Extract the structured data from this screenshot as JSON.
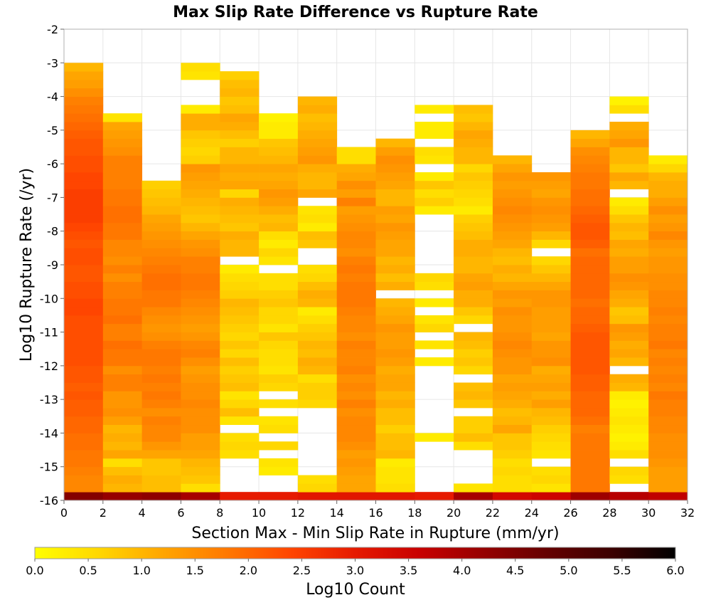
{
  "chart_data": {
    "type": "heatmap",
    "title": "Max Slip Rate Difference vs Rupture Rate",
    "xlabel": "Section Max - Min Slip Rate in Rupture (mm/yr)",
    "ylabel": "Log10 Rupture Rate (/yr)",
    "xlim": [
      0,
      32
    ],
    "ylim": [
      -16,
      -2
    ],
    "x_ticks": [
      0,
      2,
      4,
      6,
      8,
      10,
      12,
      14,
      16,
      18,
      20,
      22,
      24,
      26,
      28,
      30,
      32
    ],
    "y_ticks": [
      -2,
      -3,
      -4,
      -5,
      -6,
      -7,
      -8,
      -9,
      -10,
      -11,
      -12,
      -13,
      -14,
      -15,
      -16
    ],
    "x_bin_width": 2,
    "y_bin_height": 0.25,
    "y_first_bin_center": -15.875,
    "grid": true,
    "colorbar": {
      "label": "Log10 Count",
      "range": [
        0.0,
        6.0
      ],
      "ticks": [
        "0.0",
        "0.5",
        "1.0",
        "1.5",
        "2.0",
        "2.5",
        "3.0",
        "3.5",
        "4.0",
        "4.5",
        "5.0",
        "5.5",
        "6.0"
      ],
      "colors": [
        "#ffff00",
        "#ffd700",
        "#ffa500",
        "#ff7800",
        "#ff4500",
        "#e61a00",
        "#c80000",
        "#960000",
        "#640000",
        "#3c0000",
        "#000000"
      ]
    },
    "columns": [
      {
        "x_center": 1,
        "values": [
          4.4,
          1.6,
          1.6,
          1.7,
          1.8,
          1.8,
          1.9,
          1.9,
          2.0,
          2.0,
          2.1,
          2.1,
          2.2,
          2.1,
          2.2,
          2.2,
          2.3,
          2.3,
          2.3,
          2.3,
          2.3,
          2.3,
          2.4,
          2.4,
          2.3,
          2.3,
          2.2,
          2.2,
          2.3,
          2.3,
          2.2,
          2.3,
          2.4,
          2.5,
          2.5,
          2.5,
          2.5,
          2.4,
          2.4,
          2.3,
          2.3,
          2.2,
          2.2,
          2.1,
          2.0,
          1.9,
          1.8,
          1.7,
          1.5,
          1.3,
          1.2,
          1.0
        ]
      },
      {
        "x_center": 3,
        "values": [
          4.2,
          1.0,
          1.1,
          0.9,
          0.5,
          1.2,
          1.0,
          1.1,
          1.0,
          1.3,
          1.5,
          1.4,
          1.4,
          1.7,
          1.7,
          1.5,
          1.8,
          1.8,
          1.9,
          1.7,
          1.7,
          1.9,
          1.8,
          1.8,
          1.7,
          1.7,
          1.5,
          1.7,
          1.5,
          1.6,
          1.6,
          1.8,
          1.8,
          1.9,
          1.9,
          1.8,
          1.8,
          1.7,
          1.7,
          1.7,
          1.7,
          1.5,
          1.4,
          1.3,
          1.2,
          0.4
        ]
      },
      {
        "x_center": 5,
        "values": [
          4.3,
          0.9,
          0.9,
          0.8,
          0.8,
          1.2,
          1.4,
          1.6,
          1.6,
          1.7,
          1.5,
          1.7,
          1.8,
          1.7,
          1.8,
          1.7,
          1.8,
          1.8,
          1.7,
          1.5,
          1.4,
          1.5,
          1.6,
          1.8,
          1.8,
          1.9,
          1.9,
          1.8,
          1.7,
          1.6,
          1.5,
          1.4,
          1.3,
          1.2,
          1.0,
          0.9,
          0.8,
          0.7
        ]
      },
      {
        "x_center": 7,
        "values": [
          4.0,
          0.5,
          0.8,
          0.9,
          1.0,
          1.2,
          1.3,
          1.3,
          1.5,
          1.5,
          1.5,
          1.6,
          1.5,
          1.5,
          1.4,
          1.3,
          1.5,
          1.7,
          1.6,
          1.4,
          1.3,
          1.4,
          1.5,
          1.6,
          1.7,
          1.8,
          1.8,
          1.7,
          1.7,
          1.5,
          1.4,
          1.2,
          1.0,
          0.8,
          0.9,
          1.0,
          1.1,
          1.2,
          1.3,
          1.4,
          0.7,
          0.6,
          0.7,
          0.8,
          1.1,
          1.1,
          0.3,
          null,
          null,
          null,
          0.4,
          0.5,
          null
        ]
      },
      {
        "x_center": 9,
        "values": [
          3.0,
          null,
          null,
          null,
          null,
          0.5,
          0.6,
          0.5,
          null,
          0.4,
          0.9,
          0.6,
          0.4,
          0.9,
          0.8,
          0.7,
          0.9,
          0.6,
          0.8,
          0.6,
          0.7,
          0.8,
          0.9,
          1.0,
          0.7,
          0.6,
          0.5,
          0.3,
          null,
          1.0,
          1.0,
          1.1,
          0.8,
          0.9,
          1.0,
          1.1,
          0.6,
          1.2,
          1.1,
          1.2,
          1.0,
          1.0,
          0.7,
          0.9,
          1.1,
          1.2,
          0.9,
          0.8,
          1.0,
          0.9,
          0.7
        ]
      },
      {
        "x_center": 11,
        "values": [
          3.0,
          null,
          null,
          0.3,
          0.4,
          null,
          0.6,
          null,
          0.5,
          0.4,
          null,
          0.5,
          null,
          0.6,
          0.7,
          0.4,
          0.5,
          0.5,
          0.6,
          0.8,
          0.4,
          0.6,
          0.6,
          0.8,
          0.7,
          0.5,
          0.5,
          null,
          0.4,
          0.6,
          0.3,
          0.5,
          1.0,
          0.9,
          1.1,
          1.3,
          1.4,
          1.2,
          1.1,
          1.2,
          1.0,
          0.9,
          0.8,
          0.3,
          0.3,
          0.2
        ]
      },
      {
        "x_center": 13,
        "values": [
          3.1,
          0.6,
          0.5,
          null,
          null,
          null,
          null,
          null,
          null,
          null,
          null,
          0.6,
          0.7,
          0.7,
          0.5,
          1.0,
          1.1,
          0.9,
          1.0,
          0.8,
          0.7,
          0.5,
          0.3,
          1.0,
          1.1,
          0.9,
          0.6,
          0.5,
          null,
          null,
          0.8,
          0.9,
          0.3,
          0.5,
          0.4,
          null,
          1.2,
          1.0,
          1.0,
          1.1,
          1.4,
          1.3,
          1.2,
          1.1,
          1.0,
          0.9,
          1.1,
          1.0
        ]
      },
      {
        "x_center": 15,
        "values": [
          3.1,
          1.2,
          1.2,
          1.3,
          1.4,
          1.3,
          1.5,
          1.6,
          1.6,
          1.6,
          1.5,
          1.7,
          1.5,
          1.6,
          1.5,
          1.7,
          1.6,
          1.6,
          1.7,
          1.5,
          1.6,
          1.6,
          1.7,
          1.8,
          1.8,
          1.8,
          1.7,
          1.8,
          1.7,
          1.5,
          1.6,
          1.6,
          1.5,
          1.4,
          1.3,
          1.7,
          1.3,
          1.5,
          1.2,
          1.1,
          0.5,
          0.5
        ]
      },
      {
        "x_center": 17,
        "values": [
          3.1,
          0.5,
          0.4,
          0.4,
          0.3,
          1.0,
          0.9,
          0.9,
          0.7,
          0.9,
          0.9,
          1.1,
          1.0,
          1.2,
          1.2,
          1.1,
          1.3,
          1.4,
          1.3,
          1.3,
          1.4,
          1.2,
          1.1,
          1.0,
          null,
          1.1,
          0.9,
          1.1,
          1.0,
          1.2,
          1.2,
          1.3,
          1.4,
          1.2,
          1.3,
          1.0,
          1.0,
          1.2,
          1.3,
          1.4,
          1.5,
          1.3,
          1.0
        ]
      },
      {
        "x_center": 19,
        "values": [
          3.0,
          null,
          null,
          null,
          null,
          null,
          null,
          0.3,
          null,
          null,
          null,
          null,
          null,
          null,
          null,
          null,
          0.3,
          null,
          0.4,
          null,
          0.6,
          0.4,
          null,
          0.3,
          null,
          0.5,
          0.6,
          null,
          null,
          null,
          null,
          null,
          null,
          null,
          0.3,
          0.7,
          0.5,
          0.8,
          0.3,
          null,
          0.4,
          0.5,
          null,
          0.3,
          0.3,
          null,
          0.3
        ]
      },
      {
        "x_center": 21,
        "values": [
          4.0,
          0.4,
          null,
          null,
          null,
          null,
          0.5,
          0.9,
          0.7,
          0.7,
          null,
          0.8,
          1.0,
          0.9,
          null,
          0.6,
          0.8,
          0.7,
          0.9,
          1.0,
          null,
          0.6,
          0.8,
          1.1,
          1.1,
          1.3,
          1.2,
          1.0,
          1.0,
          1.1,
          1.1,
          0.9,
          0.8,
          0.7,
          0.3,
          0.5,
          0.6,
          0.7,
          0.8,
          0.6,
          1.0,
          1.0,
          1.1,
          1.2,
          1.0,
          0.8,
          0.9
        ]
      },
      {
        "x_center": 23,
        "values": [
          3.4,
          0.5,
          0.5,
          0.6,
          0.5,
          0.7,
          0.8,
          0.8,
          1.2,
          1.0,
          0.9,
          1.1,
          1.2,
          1.3,
          1.2,
          1.4,
          1.4,
          1.5,
          1.6,
          1.5,
          1.4,
          1.4,
          1.5,
          1.3,
          1.4,
          1.2,
          1.0,
          1.1,
          0.9,
          1.0,
          1.2,
          1.3,
          1.4,
          1.5,
          1.6,
          1.5,
          1.4,
          1.3,
          1.4,
          1.2,
          1.0
        ]
      },
      {
        "x_center": 25,
        "values": [
          3.5,
          0.4,
          0.6,
          0.5,
          null,
          0.4,
          0.5,
          0.6,
          0.7,
          0.9,
          1.0,
          1.3,
          1.1,
          1.3,
          1.2,
          1.1,
          1.5,
          1.4,
          1.4,
          1.2,
          1.3,
          1.3,
          1.3,
          1.4,
          1.4,
          1.2,
          1.0,
          0.8,
          0.6,
          null,
          0.6,
          1.0,
          1.3,
          1.4,
          1.5,
          1.4,
          1.2,
          1.3,
          1.4
        ]
      },
      {
        "x_center": 27,
        "values": [
          4.1,
          1.8,
          1.8,
          1.8,
          1.8,
          1.8,
          1.8,
          1.8,
          1.7,
          1.9,
          2.0,
          2.0,
          2.0,
          2.1,
          2.1,
          2.2,
          2.2,
          2.2,
          2.2,
          2.2,
          2.1,
          2.0,
          2.0,
          1.9,
          2.0,
          2.0,
          2.0,
          2.0,
          2.0,
          1.9,
          2.1,
          2.2,
          2.2,
          2.1,
          2.0,
          1.9,
          1.9,
          1.8,
          1.8,
          1.7,
          1.6,
          1.5,
          1.2,
          1.0
        ]
      },
      {
        "x_center": 29,
        "values": [
          3.8,
          null,
          0.5,
          0.6,
          null,
          0.5,
          0.3,
          0.2,
          0.3,
          0.4,
          0.3,
          0.2,
          0.3,
          1.0,
          1.1,
          null,
          1.0,
          1.2,
          1.1,
          1.3,
          1.4,
          0.9,
          0.8,
          1.1,
          1.2,
          1.4,
          1.5,
          1.3,
          1.3,
          1.1,
          1.2,
          0.9,
          1.0,
          0.8,
          0.5,
          0.3,
          null,
          1.0,
          1.2,
          0.8,
          1.0,
          1.0,
          1.4,
          1.2,
          1.1,
          null,
          0.5,
          0.2
        ]
      },
      {
        "x_center": 31,
        "values": [
          3.7,
          1.3,
          1.3,
          1.3,
          1.4,
          1.5,
          1.5,
          1.5,
          1.6,
          1.6,
          1.7,
          1.7,
          1.8,
          1.6,
          1.7,
          1.6,
          1.7,
          1.6,
          1.8,
          1.7,
          1.7,
          1.6,
          1.7,
          1.6,
          1.6,
          1.5,
          1.5,
          1.4,
          1.4,
          1.3,
          1.4,
          1.6,
          1.4,
          1.3,
          1.5,
          1.3,
          1.1,
          1.1,
          1.0,
          0.6,
          0.3
        ]
      }
    ]
  }
}
